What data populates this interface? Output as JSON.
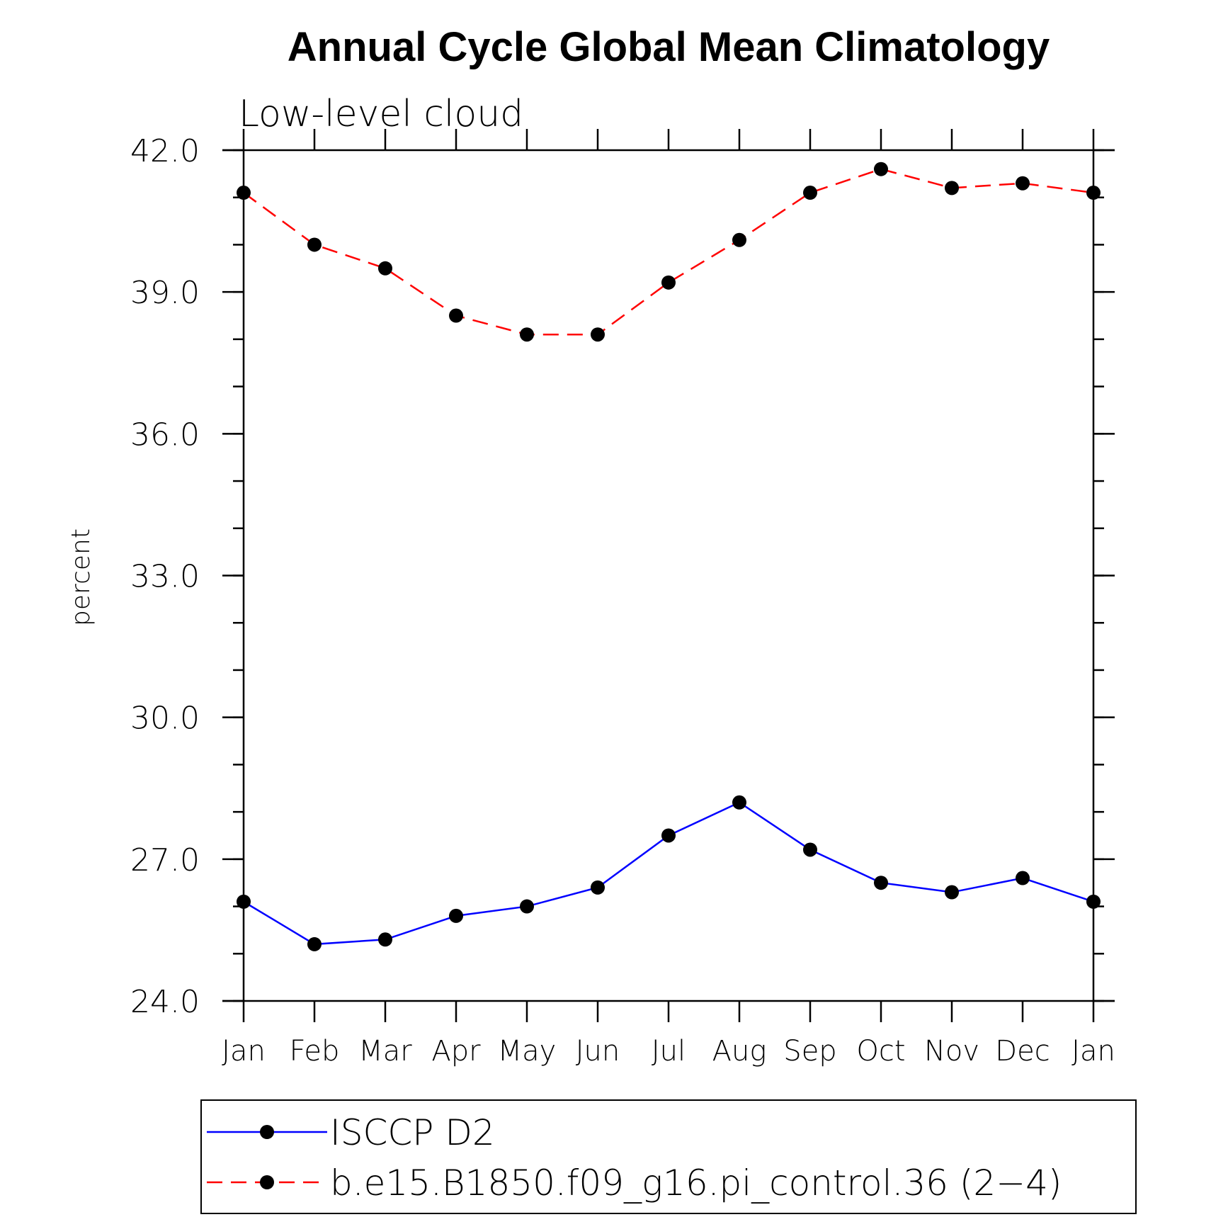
{
  "chart_data": {
    "type": "line",
    "title": "Annual Cycle Global Mean Climatology",
    "subtitle": "Low-level cloud",
    "xlabel": "",
    "ylabel": "percent",
    "categories": [
      "Jan",
      "Feb",
      "Mar",
      "Apr",
      "May",
      "Jun",
      "Jul",
      "Aug",
      "Sep",
      "Oct",
      "Nov",
      "Dec",
      "Jan"
    ],
    "ylim": [
      24.0,
      42.0
    ],
    "yticks": [
      "24.0",
      "27.0",
      "30.0",
      "33.0",
      "36.0",
      "39.0",
      "42.0"
    ],
    "grid": false,
    "legend_position": "bottom",
    "series": [
      {
        "name": "ISCCP D2",
        "color": "#0000ff",
        "dash": "solid",
        "marker": "filled-circle",
        "values": [
          26.1,
          25.2,
          25.3,
          25.8,
          26.0,
          26.4,
          27.5,
          28.2,
          27.2,
          26.5,
          26.3,
          26.6,
          26.1
        ]
      },
      {
        "name": "b.e15.B1850.f09_g16.pi_control.36 (2−4)",
        "color": "#ff0000",
        "dash": "dashed",
        "marker": "filled-circle",
        "values": [
          41.1,
          40.0,
          39.5,
          38.5,
          38.1,
          38.1,
          39.2,
          40.1,
          41.1,
          41.6,
          41.2,
          41.3,
          41.1
        ]
      }
    ]
  }
}
